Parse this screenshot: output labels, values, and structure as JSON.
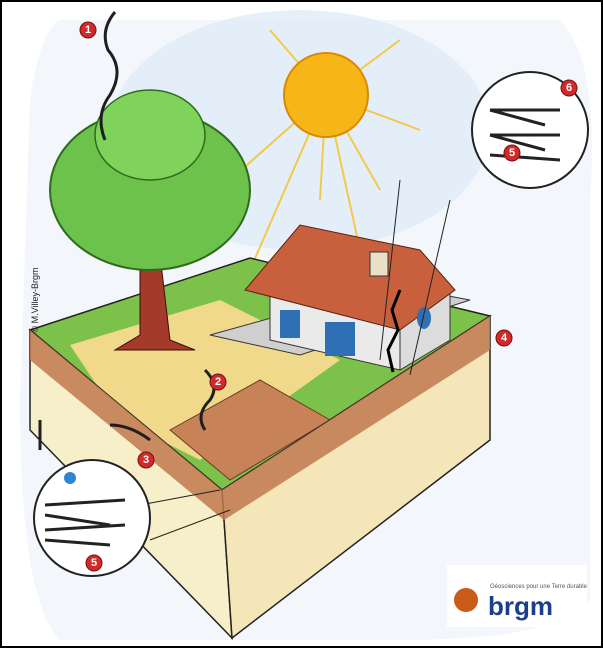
{
  "credit": "© M.Villey-Brgm",
  "markers": [
    {
      "label": "1"
    },
    {
      "label": "2"
    },
    {
      "label": "3"
    },
    {
      "label": "4"
    },
    {
      "label": "5"
    },
    {
      "label": "5"
    },
    {
      "label": "6"
    }
  ],
  "logo": {
    "name": "brgm",
    "tagline": "Géosciences pour une Terre durable"
  }
}
